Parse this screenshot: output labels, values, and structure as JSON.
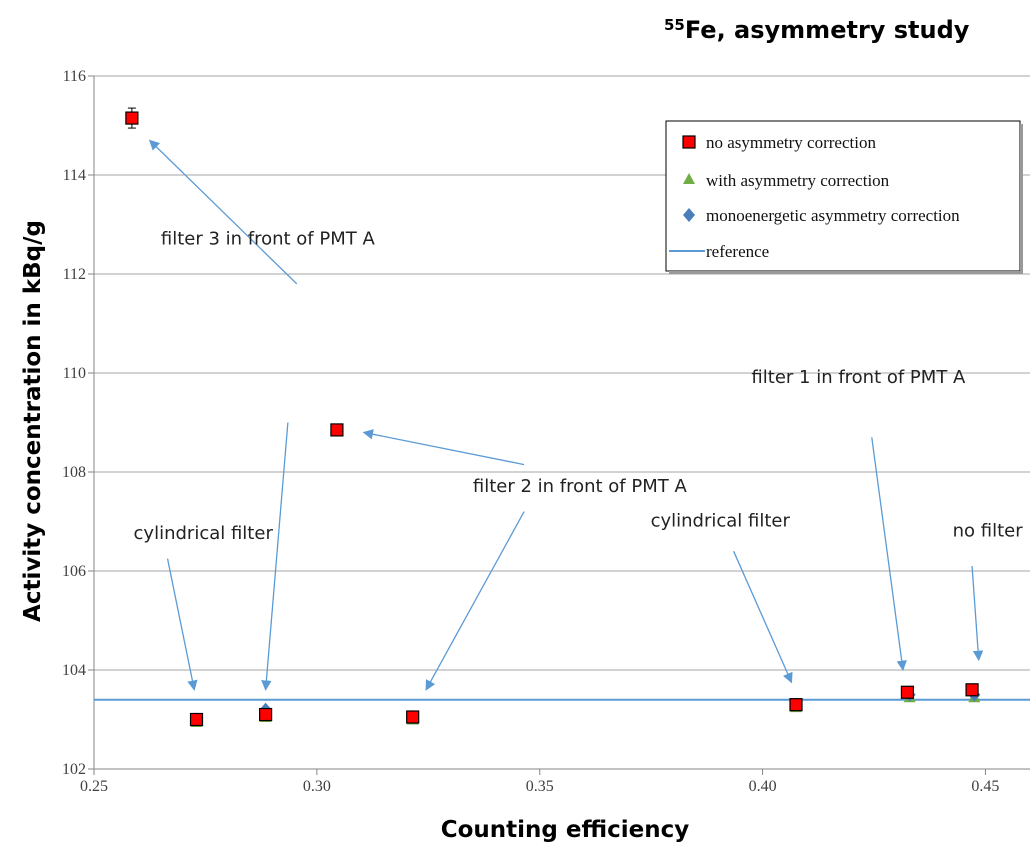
{
  "chart_data": {
    "type": "scatter",
    "title_sup": "55",
    "title": "Fe, asymmetry study",
    "xlabel": "Counting efficiency",
    "ylabel": "Activity concentration in kBq/g",
    "xlim": [
      0.25,
      0.46
    ],
    "ylim": [
      102,
      116
    ],
    "xticks": [
      "0.25",
      "0.30",
      "0.35",
      "0.40",
      "0.45"
    ],
    "xtick_values": [
      0.25,
      0.3,
      0.35,
      0.4,
      0.45
    ],
    "yticks": [
      "102",
      "104",
      "106",
      "108",
      "110",
      "112",
      "114",
      "116"
    ],
    "ytick_values": [
      102,
      104,
      106,
      108,
      110,
      112,
      114,
      116
    ],
    "grid": "horizontal",
    "legend_position": "top-right",
    "series": [
      {
        "name": "no asymmetry correction",
        "marker": "square",
        "color": "#ff0000",
        "points": [
          {
            "x": 0.2585,
            "y": 115.15
          },
          {
            "x": 0.3045,
            "y": 108.85
          },
          {
            "x": 0.273,
            "y": 103.0
          },
          {
            "x": 0.2885,
            "y": 103.1
          },
          {
            "x": 0.3215,
            "y": 103.05
          },
          {
            "x": 0.4075,
            "y": 103.3
          },
          {
            "x": 0.4325,
            "y": 103.55
          },
          {
            "x": 0.447,
            "y": 103.6
          }
        ]
      },
      {
        "name": "with asymmetry correction",
        "marker": "triangle",
        "color": "#70ad47",
        "points": [
          {
            "x": 0.273,
            "y": 102.95
          },
          {
            "x": 0.2885,
            "y": 103.05
          },
          {
            "x": 0.3215,
            "y": 103.0
          },
          {
            "x": 0.4075,
            "y": 103.25
          },
          {
            "x": 0.433,
            "y": 103.45
          },
          {
            "x": 0.4475,
            "y": 103.45
          }
        ]
      },
      {
        "name": "monoenergetic asymmetry correction",
        "marker": "diamond",
        "color": "#4a7ebb",
        "points": [
          {
            "x": 0.273,
            "y": 103.0
          },
          {
            "x": 0.2885,
            "y": 103.2
          },
          {
            "x": 0.3215,
            "y": 103.05
          },
          {
            "x": 0.4075,
            "y": 103.3
          },
          {
            "x": 0.433,
            "y": 103.5
          },
          {
            "x": 0.4475,
            "y": 103.5
          }
        ]
      }
    ],
    "reference": {
      "name": "reference",
      "y": 103.4,
      "color": "#5b9bd5"
    },
    "annotations": [
      {
        "text": "filter 3 in front of PMT A",
        "x": 0.289,
        "y": 112.6,
        "arrows": [
          [
            0.2955,
            111.8,
            0.2625,
            114.7
          ],
          [
            0.2935,
            109.0,
            0.2885,
            103.6
          ]
        ]
      },
      {
        "text": "filter 2 in front of PMT A",
        "x": 0.359,
        "y": 107.6,
        "arrows": [
          [
            0.3465,
            108.15,
            0.3105,
            108.8
          ],
          [
            0.3465,
            107.2,
            0.3245,
            103.6
          ]
        ]
      },
      {
        "text": "cylindrical filter",
        "x": 0.2745,
        "y": 106.65,
        "arrows": [
          [
            0.2665,
            106.25,
            0.2725,
            103.6
          ]
        ]
      },
      {
        "text": "cylindrical filter",
        "x": 0.3905,
        "y": 106.9,
        "arrows": [
          [
            0.3935,
            106.4,
            0.4065,
            103.75
          ]
        ]
      },
      {
        "text": "filter 1 in front of PMT A",
        "x": 0.4215,
        "y": 109.8,
        "arrows": [
          [
            0.4245,
            108.7,
            0.4315,
            104.0
          ]
        ]
      },
      {
        "text": "no filter",
        "x": 0.4505,
        "y": 106.7,
        "arrows": [
          [
            0.447,
            106.1,
            0.4485,
            104.2
          ]
        ]
      }
    ]
  }
}
